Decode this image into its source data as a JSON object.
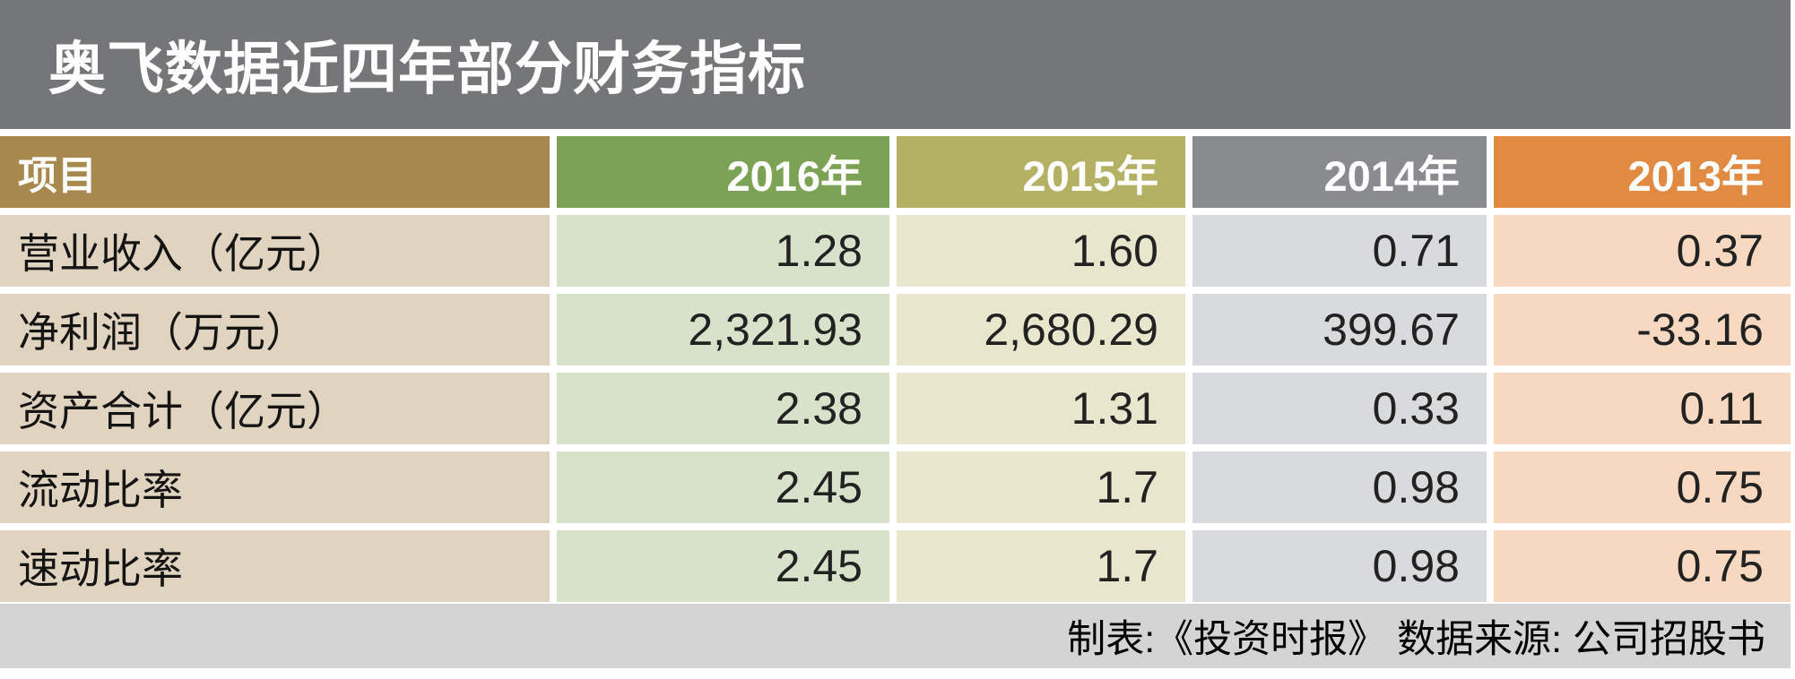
{
  "page": {
    "title": "奥飞数据近四年部分财务指标",
    "footer": "制表:《投资时报》 数据来源: 公司招股书"
  },
  "colors": {
    "title_bar": "#757678",
    "header_item": "#a7894e",
    "header_2016": "#7ca355",
    "header_2015": "#b5b164",
    "header_2014": "#8a8b8e",
    "header_2013": "#e18a42",
    "body_item": "#e0d3bf",
    "body_2016": "#d8e2ca",
    "body_2015": "#e8e6cd",
    "body_2014": "#d9dadc",
    "body_2013": "#f6d9c0",
    "footer_bar": "#d4d4d4"
  },
  "table": {
    "header": [
      "项目",
      "2016年",
      "2015年",
      "2014年",
      "2013年"
    ],
    "rows": [
      {
        "label": "营业收入（亿元）",
        "values": [
          "1.28",
          "1.60",
          "0.71",
          "0.37"
        ]
      },
      {
        "label": "净利润（万元）",
        "values": [
          "2,321.93",
          "2,680.29",
          "399.67",
          "-33.16"
        ]
      },
      {
        "label": "资产合计（亿元）",
        "values": [
          "2.38",
          "1.31",
          "0.33",
          "0.11"
        ]
      },
      {
        "label": "流动比率",
        "values": [
          "2.45",
          "1.7",
          "0.98",
          "0.75"
        ]
      },
      {
        "label": "速动比率",
        "values": [
          "2.45",
          "1.7",
          "0.98",
          "0.75"
        ]
      }
    ]
  },
  "chart_data": {
    "type": "table",
    "title": "奥飞数据近四年部分财务指标",
    "columns": [
      "项目",
      "2016年",
      "2015年",
      "2014年",
      "2013年"
    ],
    "rows": [
      [
        "营业收入（亿元）",
        1.28,
        1.6,
        0.71,
        0.37
      ],
      [
        "净利润（万元）",
        2321.93,
        2680.29,
        399.67,
        -33.16
      ],
      [
        "资产合计（亿元）",
        2.38,
        1.31,
        0.33,
        0.11
      ],
      [
        "流动比率",
        2.45,
        1.7,
        0.98,
        0.75
      ],
      [
        "速动比率",
        2.45,
        1.7,
        0.98,
        0.75
      ]
    ],
    "source": "制表:《投资时报》 数据来源: 公司招股书"
  }
}
